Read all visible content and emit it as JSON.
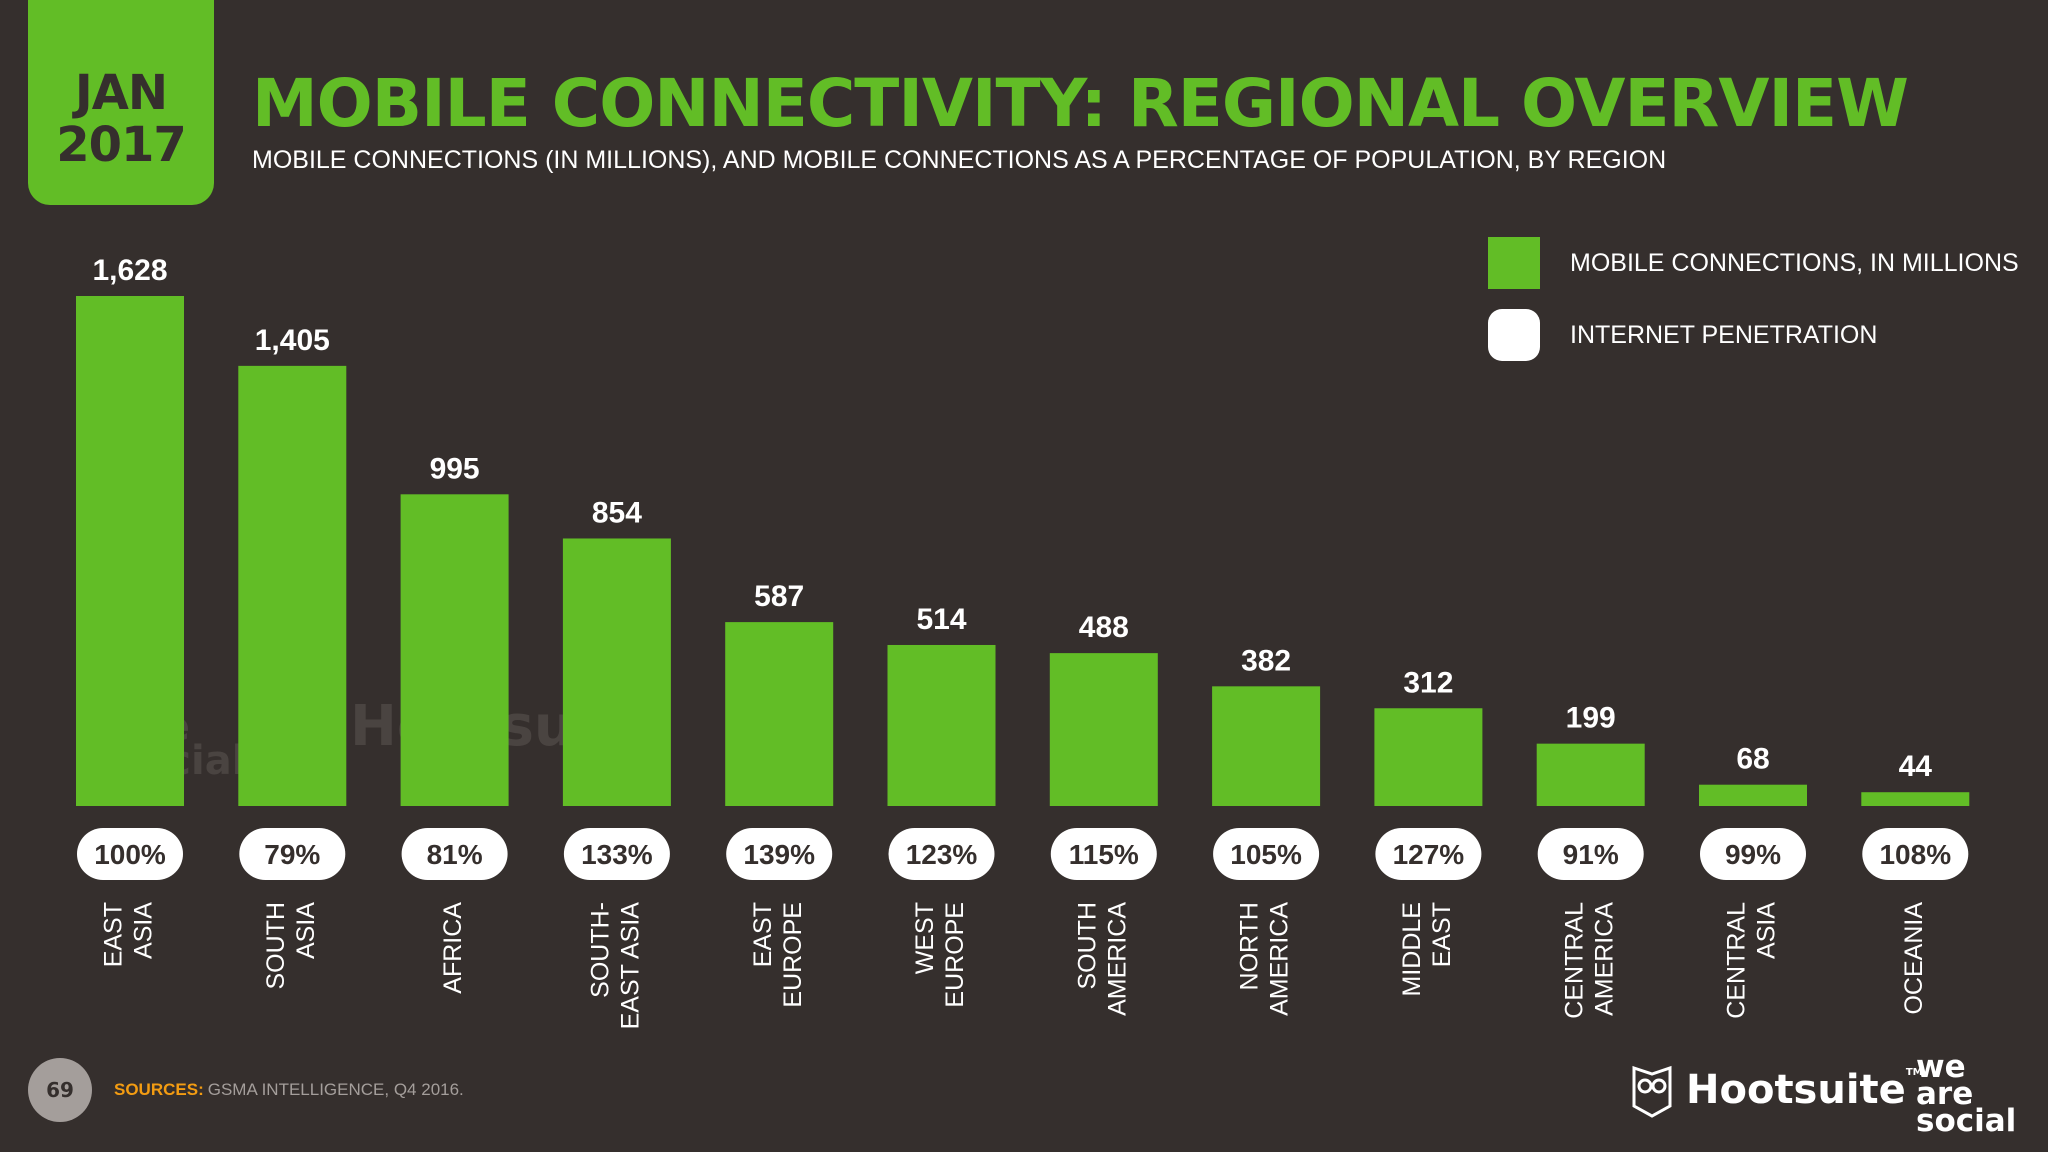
{
  "header": {
    "date_month": "JAN",
    "date_year": "2017",
    "title": "MOBILE CONNECTIVITY: REGIONAL OVERVIEW",
    "subtitle": "MOBILE CONNECTIONS (IN MILLIONS), AND MOBILE CONNECTIONS AS A PERCENTAGE OF POPULATION, BY REGION"
  },
  "legend": {
    "bar_label": "MOBILE CONNECTIONS, IN MILLIONS",
    "pill_label": "INTERNET PENETRATION"
  },
  "watermark": {
    "we_line1": "we",
    "we_line2": "are",
    "we_line3": "social",
    "hootsuite": "Hootsuite"
  },
  "colors": {
    "background": "#352f2d",
    "accent_green": "#62bd26",
    "pill_white": "#ffffff",
    "source_orange": "#f39c12"
  },
  "chart_data": {
    "type": "bar",
    "categories": [
      [
        "EAST",
        "ASIA"
      ],
      [
        "SOUTH",
        "ASIA"
      ],
      [
        "AFRICA"
      ],
      [
        "SOUTH-",
        "EAST ASIA"
      ],
      [
        "EAST",
        "EUROPE"
      ],
      [
        "WEST",
        "EUROPE"
      ],
      [
        "SOUTH",
        "AMERICA"
      ],
      [
        "NORTH",
        "AMERICA"
      ],
      [
        "MIDDLE",
        "EAST"
      ],
      [
        "CENTRAL",
        "AMERICA"
      ],
      [
        "CENTRAL",
        "ASIA"
      ],
      [
        "OCEANIA"
      ]
    ],
    "series": [
      {
        "name": "MOBILE CONNECTIONS, IN MILLIONS",
        "values": [
          1628,
          1405,
          995,
          854,
          587,
          514,
          488,
          382,
          312,
          199,
          68,
          44
        ],
        "labels": [
          "1,628",
          "1,405",
          "995",
          "854",
          "587",
          "514",
          "488",
          "382",
          "312",
          "199",
          "68",
          "44"
        ]
      },
      {
        "name": "INTERNET PENETRATION",
        "values": [
          100,
          79,
          81,
          133,
          139,
          123,
          115,
          105,
          127,
          91,
          99,
          108
        ],
        "labels": [
          "100%",
          "79%",
          "81%",
          "133%",
          "139%",
          "123%",
          "115%",
          "105%",
          "127%",
          "91%",
          "99%",
          "108%"
        ]
      }
    ],
    "ylim": [
      0,
      1628
    ],
    "grid": false,
    "legend_position": "top-right"
  },
  "footer": {
    "page_number": "69",
    "sources_key": "SOURCES:",
    "sources_text": "GSMA INTELLIGENCE, Q4 2016.",
    "hootsuite": "Hootsuite",
    "hootsuite_tm": "TM",
    "we_line1": "we",
    "we_line2": "are",
    "we_line3": "social"
  }
}
